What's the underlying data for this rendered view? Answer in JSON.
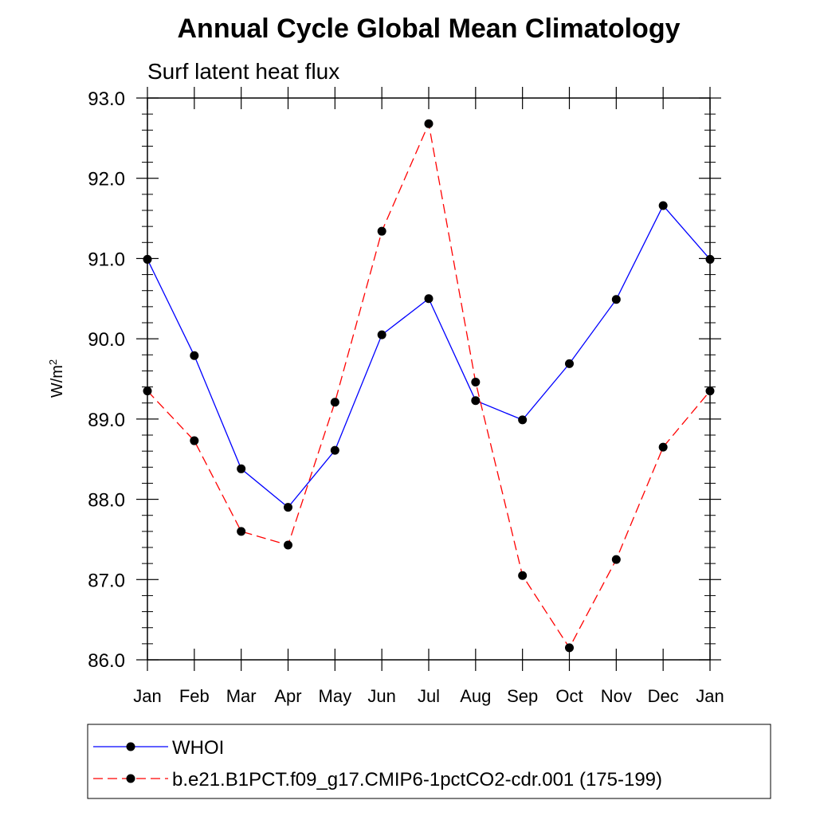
{
  "chart_data": {
    "type": "line",
    "title": "Annual Cycle Global Mean Climatology",
    "subtitle": "Surf latent heat flux",
    "ylabel": "W/m",
    "ylabel_superscript": "2",
    "ylim": [
      86.0,
      93.0
    ],
    "yticks": [
      "93.0",
      "92.0",
      "91.0",
      "90.0",
      "89.0",
      "88.0",
      "87.0",
      "86.0"
    ],
    "ytick_values": [
      93.0,
      92.0,
      91.0,
      90.0,
      89.0,
      88.0,
      87.0,
      86.0
    ],
    "categories": [
      "Jan",
      "Feb",
      "Mar",
      "Apr",
      "May",
      "Jun",
      "Jul",
      "Aug",
      "Sep",
      "Oct",
      "Nov",
      "Dec",
      "Jan"
    ],
    "series": [
      {
        "name": "WHOI",
        "color": "#0000ff",
        "dash": "solid",
        "values": [
          90.99,
          89.79,
          88.38,
          87.9,
          88.61,
          90.05,
          90.5,
          89.23,
          88.99,
          89.69,
          90.49,
          91.66,
          90.99
        ]
      },
      {
        "name": "b.e21.B1PCT.f09_g17.CMIP6-1pctCO2-cdr.001 (175-199)",
        "color": "#ff0000",
        "dash": "dashed",
        "values": [
          89.35,
          88.73,
          87.6,
          87.43,
          89.21,
          91.34,
          92.68,
          89.46,
          87.05,
          86.15,
          87.25,
          88.65,
          89.35
        ]
      }
    ],
    "legend_position": "bottom"
  }
}
